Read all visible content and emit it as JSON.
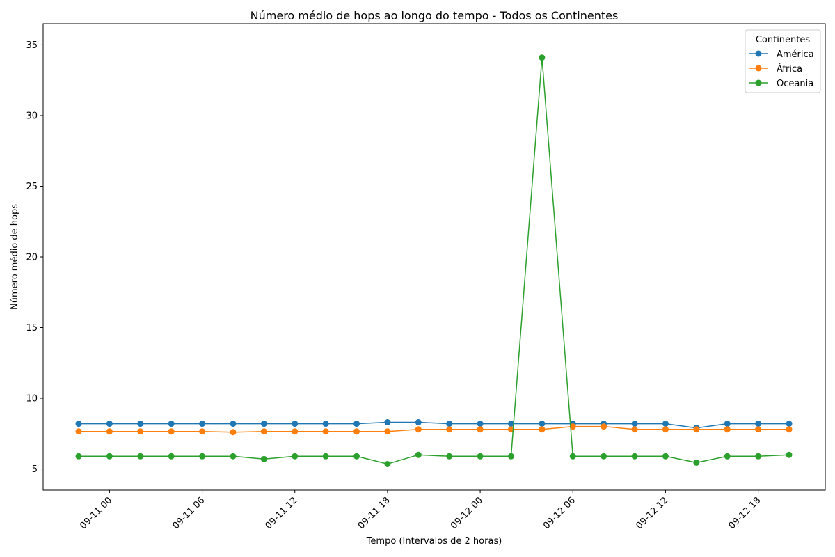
{
  "chart_data": {
    "type": "line",
    "title": "Número médio de hops ao longo do tempo - Todos os Continentes",
    "xlabel": "Tempo (Intervalos de 2 horas)",
    "ylabel": "Número médio de hops",
    "x": [
      "09-10 22",
      "09-11 00",
      "09-11 02",
      "09-11 04",
      "09-11 06",
      "09-11 08",
      "09-11 10",
      "09-11 12",
      "09-11 14",
      "09-11 16",
      "09-11 18",
      "09-11 20",
      "09-11 22",
      "09-12 00",
      "09-12 02",
      "09-12 04",
      "09-12 06",
      "09-12 08",
      "09-12 10",
      "09-12 12",
      "09-12 14",
      "09-12 16",
      "09-12 18",
      "09-12 20"
    ],
    "xticks": [
      "09-11 00",
      "09-11 06",
      "09-11 12",
      "09-11 18",
      "09-12 00",
      "09-12 06",
      "09-12 12",
      "09-12 18"
    ],
    "yticks": [
      5,
      10,
      15,
      20,
      25,
      30,
      35
    ],
    "ylim": [
      3.5,
      36.5
    ],
    "legend_title": "Continentes",
    "legend_position": "top-right",
    "grid": false,
    "series": [
      {
        "name": "América",
        "color": "#1f77b4",
        "values": [
          8.2,
          8.2,
          8.2,
          8.2,
          8.2,
          8.2,
          8.2,
          8.2,
          8.2,
          8.2,
          8.3,
          8.3,
          8.2,
          8.2,
          8.2,
          8.2,
          8.2,
          8.2,
          8.2,
          8.2,
          7.9,
          8.2,
          8.2,
          8.2
        ]
      },
      {
        "name": "África",
        "color": "#ff7f0e",
        "values": [
          7.65,
          7.65,
          7.65,
          7.65,
          7.65,
          7.6,
          7.65,
          7.65,
          7.65,
          7.65,
          7.65,
          7.8,
          7.8,
          7.8,
          7.8,
          7.8,
          8.0,
          8.0,
          7.8,
          7.8,
          7.8,
          7.8,
          7.8,
          7.8
        ]
      },
      {
        "name": "Oceania",
        "color": "#2ca02c",
        "values": [
          5.9,
          5.9,
          5.9,
          5.9,
          5.9,
          5.9,
          5.7,
          5.9,
          5.9,
          5.9,
          5.35,
          6.0,
          5.9,
          5.9,
          5.9,
          34.1,
          5.9,
          5.9,
          5.9,
          5.9,
          5.45,
          5.9,
          5.9,
          6.0
        ]
      }
    ]
  }
}
